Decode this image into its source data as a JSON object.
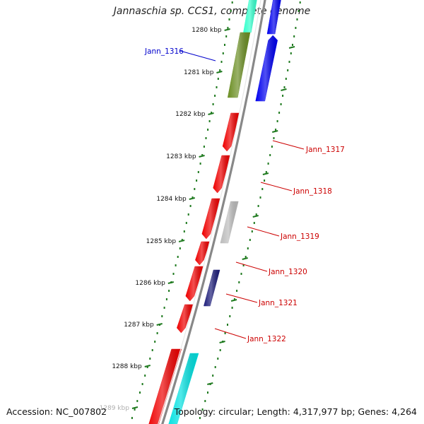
{
  "title": "Jannaschia sp. CCS1, complete genome",
  "footer": {
    "accession": "Accession: NC_007802",
    "summary": "Topology: circular; Length: 4,317,977 bp; Genes: 4,264"
  },
  "colors": {
    "backbone": "#8c8c8c",
    "kbp_ticks": "#1f7a1f",
    "cds_red": "#ee0000",
    "cds_blue": "#0000ee",
    "cds_olive": "#6b8e23",
    "cds_cyan": "#00e0e0",
    "cds_teal": "#33ffcc",
    "cds_grey": "#bcbcbc",
    "cds_navy": "#1e1e7a",
    "label_red": "#cc0000",
    "label_blue": "#0000cc"
  },
  "scale_labels": [
    "1280 kbp",
    "1281 kbp",
    "1282 kbp",
    "1283 kbp",
    "1284 kbp",
    "1285 kbp",
    "1286 kbp",
    "1287 kbp",
    "1288 kbp",
    "1289 kbp"
  ],
  "gene_labels": [
    {
      "name": "Jann_1316",
      "color": "#0000cc"
    },
    {
      "name": "Jann_1317",
      "color": "#cc0000"
    },
    {
      "name": "Jann_1318",
      "color": "#cc0000"
    },
    {
      "name": "Jann_1319",
      "color": "#cc0000"
    },
    {
      "name": "Jann_1320",
      "color": "#cc0000"
    },
    {
      "name": "Jann_1321",
      "color": "#cc0000"
    },
    {
      "name": "Jann_1322",
      "color": "#cc0000"
    }
  ]
}
